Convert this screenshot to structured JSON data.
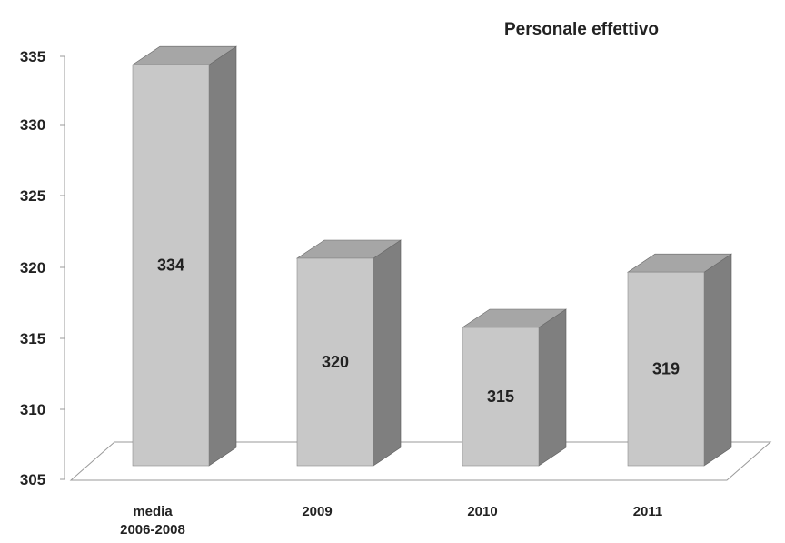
{
  "chart_data": {
    "type": "bar",
    "style": "3d",
    "title": "Personale effettivo",
    "xlabel": "",
    "ylabel": "",
    "categories": [
      [
        "media",
        "2006-2008"
      ],
      [
        "2009"
      ],
      [
        "2010"
      ],
      [
        "2011"
      ]
    ],
    "values": [
      334,
      320,
      315,
      319
    ],
    "data_labels": [
      "334",
      "320",
      "315",
      "319"
    ],
    "ylim": [
      305,
      335
    ],
    "yticks": [
      305,
      310,
      315,
      320,
      325,
      330,
      335
    ],
    "grid": false,
    "legend": "none",
    "colors": {
      "bar_front": "#c8c8c8",
      "bar_side": "#7f7f7f",
      "bar_top": "#a6a6a6",
      "text": "#222222"
    }
  }
}
